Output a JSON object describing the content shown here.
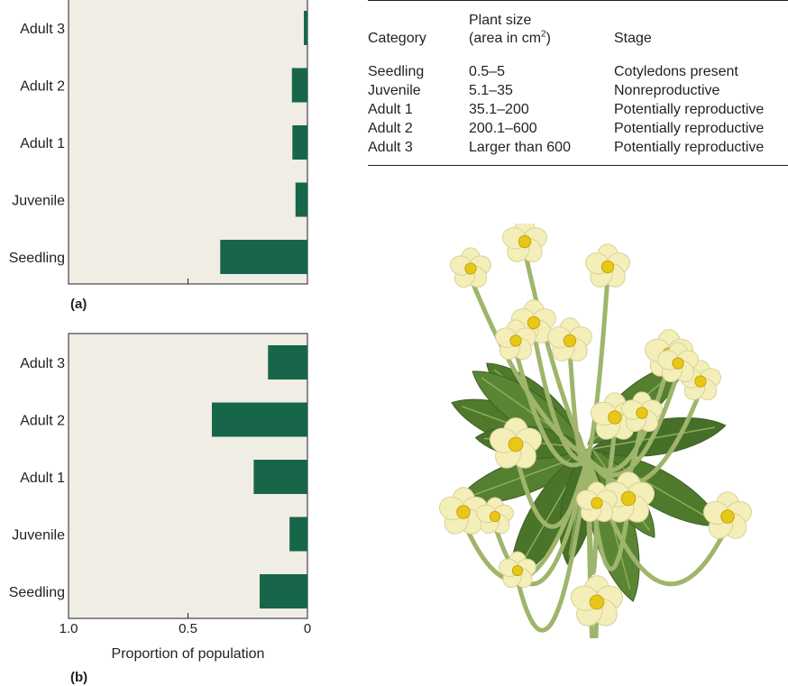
{
  "chart_data": [
    {
      "type": "bar",
      "orientation": "horizontal",
      "panel_label": "(a)",
      "categories": [
        "Adult 3",
        "Adult 2",
        "Adult 1",
        "Juvenile",
        "Seedling"
      ],
      "values": [
        0.015,
        0.065,
        0.063,
        0.05,
        0.365
      ],
      "xlim": [
        1.0,
        0
      ],
      "tick_labels": [],
      "xlabel": "",
      "color": "#17664a"
    },
    {
      "type": "bar",
      "orientation": "horizontal",
      "panel_label": "(b)",
      "categories": [
        "Adult 3",
        "Adult 2",
        "Adult 1",
        "Juvenile",
        "Seedling"
      ],
      "values": [
        0.165,
        0.4,
        0.225,
        0.075,
        0.2
      ],
      "xlim": [
        1.0,
        0
      ],
      "tick_labels": [
        "1.0",
        "0.5",
        "0"
      ],
      "xlabel": "Proportion of population",
      "color": "#17664a"
    }
  ],
  "table": {
    "headers": {
      "category": "Category",
      "size_line1": "Plant size",
      "size_line2": "(area in cm",
      "size_sup": "2",
      "size_close": ")",
      "stage": "Stage"
    },
    "rows": [
      {
        "category": "Seedling",
        "size": "0.5–5",
        "stage": "Cotyledons present"
      },
      {
        "category": "Juvenile",
        "size": "5.1–35",
        "stage": "Nonreproductive"
      },
      {
        "category": "Adult 1",
        "size": "35.1–200",
        "stage": "Potentially reproductive"
      },
      {
        "category": "Adult 2",
        "size": "200.1–600",
        "stage": "Potentially reproductive"
      },
      {
        "category": "Adult 3",
        "size": "Larger than 600",
        "stage": "Potentially reproductive"
      }
    ]
  },
  "colors": {
    "bar": "#17664a",
    "panel": "#efede4",
    "leaf": "#4f7a2c",
    "petal": "#f4efb8",
    "flower_center": "#e8c817"
  }
}
